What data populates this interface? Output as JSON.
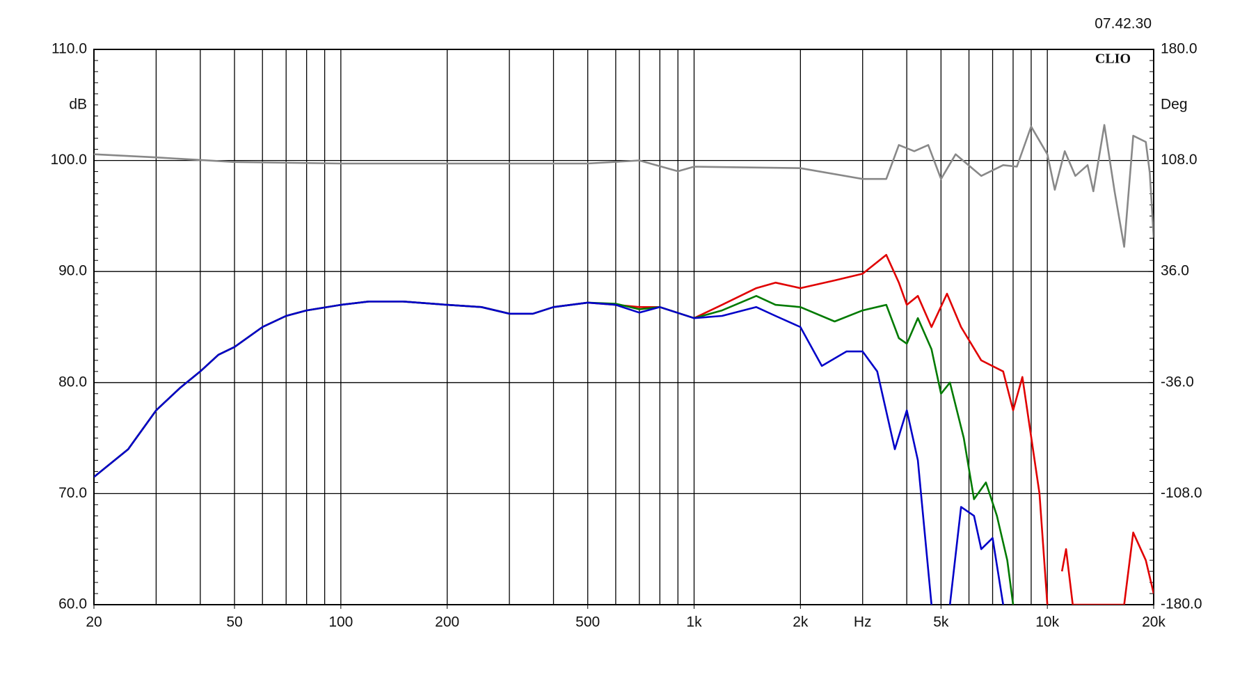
{
  "chart_data": {
    "type": "line",
    "timestamp": "07.42.30",
    "brand": "CLIO",
    "y_label": "dB",
    "y2_label": "Deg",
    "x_label": "Hz",
    "log_x": true,
    "grid": true,
    "xlim": [
      20,
      20000
    ],
    "xticks": [
      20,
      50,
      100,
      200,
      500,
      {
        "value": 1000,
        "label": "1k"
      },
      {
        "value": 2000,
        "label": "2k"
      },
      {
        "value": 5000,
        "label": "5k"
      },
      {
        "value": 10000,
        "label": "10k"
      },
      {
        "value": 20000,
        "label": "20k"
      }
    ],
    "ylim": [
      60,
      110
    ],
    "yticks": [
      {
        "value": 60,
        "label": "60.0"
      },
      {
        "value": 70,
        "label": "70.0"
      },
      {
        "value": 80,
        "label": "80.0"
      },
      {
        "value": 90,
        "label": "90.0"
      },
      {
        "value": 100,
        "label": "100.0"
      },
      {
        "value": 110,
        "label": "110.0"
      }
    ],
    "y2lim": [
      -180,
      180
    ],
    "y2ticks": [
      {
        "value": -180,
        "label": "-180.0"
      },
      {
        "value": -108,
        "label": "-108.0"
      },
      {
        "value": -36,
        "label": "-36.0"
      },
      {
        "value": 36,
        "label": "36.0"
      },
      {
        "value": 108,
        "label": "108.0"
      },
      {
        "value": 180,
        "label": "180.0"
      }
    ],
    "series": [
      {
        "color": "#e00000",
        "x": [
          20,
          25,
          30,
          35,
          40,
          45,
          50,
          60,
          70,
          80,
          100,
          120,
          150,
          200,
          250,
          300,
          350,
          400,
          500,
          600,
          700,
          800,
          1000,
          1200,
          1500,
          1700,
          2000,
          2500,
          3000,
          3500,
          3800,
          4000,
          4300,
          4700,
          5200,
          5700,
          6500,
          7500,
          8000,
          8500,
          9500,
          10000,
          10500,
          11000,
          11300,
          11800,
          16500,
          17500,
          19000,
          20000
        ],
        "values": [
          71.5,
          74,
          77.5,
          79.5,
          81,
          82.5,
          83.2,
          85,
          86,
          86.5,
          87,
          87.3,
          87.3,
          87,
          86.8,
          86.2,
          86.2,
          86.8,
          87.2,
          87.0,
          86.8,
          86.8,
          85.8,
          87,
          88.5,
          89,
          88.5,
          89.2,
          89.8,
          91.5,
          89,
          87,
          87.8,
          85,
          88,
          85,
          82,
          81,
          77.5,
          80.5,
          70,
          60,
          null,
          63,
          65,
          60,
          60,
          66.5,
          64,
          61
        ]
      },
      {
        "color": "#007a00",
        "x": [
          20,
          25,
          30,
          35,
          40,
          45,
          50,
          60,
          70,
          80,
          100,
          120,
          150,
          200,
          250,
          300,
          350,
          400,
          500,
          600,
          700,
          800,
          1000,
          1200,
          1500,
          1700,
          2000,
          2500,
          3000,
          3500,
          3800,
          4000,
          4300,
          4700,
          5000,
          5300,
          5800,
          6200,
          6700,
          7200,
          7700,
          8000
        ],
        "values": [
          71.5,
          74,
          77.5,
          79.5,
          81,
          82.5,
          83.2,
          85,
          86,
          86.5,
          87,
          87.3,
          87.3,
          87,
          86.8,
          86.2,
          86.2,
          86.8,
          87.2,
          87.1,
          86.6,
          86.8,
          85.8,
          86.5,
          87.8,
          87,
          86.8,
          85.5,
          86.5,
          87,
          84,
          83.5,
          85.8,
          83,
          79,
          80,
          75,
          69.5,
          71,
          68,
          64,
          60
        ]
      },
      {
        "color": "#0000c8",
        "x": [
          20,
          25,
          30,
          35,
          40,
          45,
          50,
          60,
          70,
          80,
          100,
          120,
          150,
          200,
          250,
          300,
          350,
          400,
          500,
          600,
          700,
          800,
          1000,
          1200,
          1500,
          1700,
          2000,
          2300,
          2700,
          3000,
          3300,
          3700,
          4000,
          4300,
          4700,
          5000,
          5300,
          5700,
          6200,
          6500,
          7000,
          7500
        ],
        "values": [
          71.5,
          74,
          77.5,
          79.5,
          81,
          82.5,
          83.2,
          85,
          86,
          86.5,
          87,
          87.3,
          87.3,
          87,
          86.8,
          86.2,
          86.2,
          86.8,
          87.2,
          87.0,
          86.3,
          86.8,
          85.8,
          86,
          86.8,
          86,
          85,
          81.5,
          82.8,
          82.8,
          81,
          74,
          77.5,
          73,
          60,
          null,
          60,
          68.8,
          68,
          65,
          66,
          60
        ]
      },
      {
        "color": "#888888",
        "axis": "y2",
        "x": [
          20,
          30,
          50,
          100,
          200,
          500,
          700,
          900,
          1000,
          2000,
          3000,
          3500,
          3800,
          4200,
          4600,
          5000,
          5500,
          6500,
          7500,
          8200,
          9000,
          10000,
          10500,
          11200,
          12000,
          13000,
          13500,
          14500,
          15500,
          16500,
          17500,
          19000,
          19500,
          20000
        ],
        "values": [
          112,
          110,
          107,
          106,
          106,
          106,
          108,
          101,
          104,
          103,
          96,
          96,
          118,
          114,
          118,
          96,
          112,
          98,
          105,
          104,
          130,
          112,
          89,
          114,
          98,
          105,
          88,
          131,
          88,
          52,
          124,
          120,
          100,
          58
        ]
      }
    ]
  }
}
